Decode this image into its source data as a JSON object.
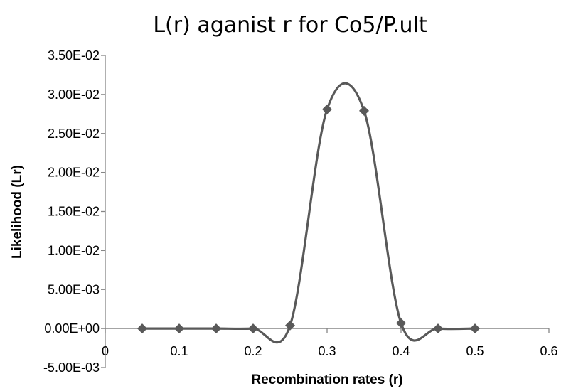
{
  "chart_data": {
    "type": "scatter",
    "title": "L(r) aganist r for Co5/P.ult",
    "xlabel": "Recombination rates (r)",
    "ylabel": "Likelihood (Lr)",
    "xlim": [
      0,
      0.6
    ],
    "ylim": [
      -0.005,
      0.035
    ],
    "x_ticks": [
      0,
      0.1,
      0.2,
      0.3,
      0.4,
      0.5,
      0.6
    ],
    "x_tick_labels": [
      "0",
      "0.1",
      "0.2",
      "0.3",
      "0.4",
      "0.5",
      "0.6"
    ],
    "y_ticks": [
      -0.005,
      0,
      0.005,
      0.01,
      0.015,
      0.02,
      0.025,
      0.03,
      0.035
    ],
    "y_tick_labels": [
      "-5.00E-03",
      "0.00E+00",
      "5.00E-03",
      "1.00E-02",
      "1.50E-02",
      "2.00E-02",
      "2.50E-02",
      "3.00E-02",
      "3.50E-02"
    ],
    "grid": false,
    "legend": false,
    "smoothed_line": true,
    "marker": "diamond",
    "series_color": "#595959",
    "series": [
      {
        "x": [
          0.05,
          0.1,
          0.15,
          0.2,
          0.25,
          0.3,
          0.35,
          0.4,
          0.45,
          0.5
        ],
        "y": [
          0.0,
          0.0,
          0.0,
          0.0,
          0.0004,
          0.0281,
          0.0279,
          0.0007,
          0.0,
          0.0
        ]
      }
    ]
  }
}
